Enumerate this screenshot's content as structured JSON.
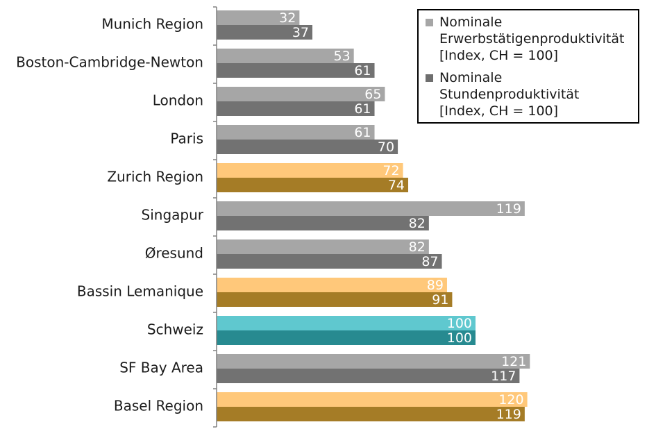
{
  "chart_data": {
    "type": "bar",
    "orientation": "horizontal",
    "categories": [
      "Munich Region",
      "Boston-Cambridge-Newton",
      "London",
      "Paris",
      "Zurich Region",
      "Singapur",
      "Øresund",
      "Bassin Lemanique",
      "Schweiz",
      "SF Bay Area",
      "Basel Region"
    ],
    "series": [
      {
        "name": "Nominale Erwerbstätigenproduktivität [Index, CH = 100]",
        "legend_lines": [
          "Nominale",
          "Erwerbstätigenproduktivität",
          "[Index, CH = 100]"
        ],
        "legend_color": "#a6a6a6",
        "values": [
          32,
          53,
          65,
          61,
          72,
          119,
          82,
          89,
          100,
          121,
          120
        ],
        "value_labels": [
          "32",
          "53",
          "65",
          "61",
          "72",
          "119",
          "82",
          "89",
          "100",
          "121",
          "120"
        ],
        "colors": [
          "#a6a6a6",
          "#a6a6a6",
          "#a6a6a6",
          "#a6a6a6",
          "#ffc87a",
          "#a6a6a6",
          "#a6a6a6",
          "#ffc87a",
          "#5fc8cf",
          "#a6a6a6",
          "#ffc87a"
        ]
      },
      {
        "name": "Nominale Stundenproduktivität [Index, CH = 100]",
        "legend_lines": [
          "Nominale",
          "Stundenproduktivität",
          "[Index, CH = 100]"
        ],
        "legend_color": "#6e6e6e",
        "values": [
          37,
          61,
          61,
          70,
          74,
          82,
          87,
          91,
          100,
          117,
          119
        ],
        "value_labels": [
          "37",
          "61",
          "61",
          "70",
          "74",
          "82",
          "87",
          "91",
          "100",
          "117",
          "119"
        ],
        "colors": [
          "#727272",
          "#727272",
          "#727272",
          "#727272",
          "#a57c26",
          "#727272",
          "#727272",
          "#a57c26",
          "#278a90",
          "#727272",
          "#a57c26"
        ]
      }
    ],
    "xlim": [
      0,
      130
    ],
    "x_axis_visible": false,
    "grid": false,
    "legend_position": "top-right"
  }
}
